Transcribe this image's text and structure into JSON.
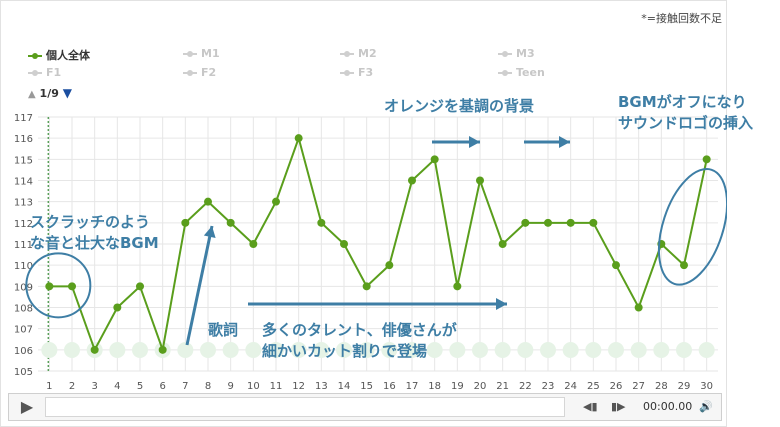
{
  "note": "*=接触回数不足",
  "legend": [
    {
      "label": "個人全体",
      "active": true
    },
    {
      "label": "M1",
      "active": false
    },
    {
      "label": "M2",
      "active": false
    },
    {
      "label": "M3",
      "active": false
    },
    {
      "label": "F1",
      "active": false
    },
    {
      "label": "F2",
      "active": false
    },
    {
      "label": "F3",
      "active": false
    },
    {
      "label": "Teen",
      "active": false
    }
  ],
  "pager": {
    "up": "▲",
    "label": "1/9",
    "down": "▼"
  },
  "annotations": {
    "scratch": "スクラッチのよう\nな音と壮大なBGM",
    "lyrics": "歌詞",
    "talent": "多くのタレント、俳優さんが\n細かいカット割りで登場",
    "orange": "オレンジを基調の背景",
    "bgm_off": "BGMがオフになり\nサウンドロゴの挿入"
  },
  "player": {
    "play": "▶",
    "prev": "◀▮",
    "next": "▮▶",
    "time": "00:00.00",
    "volume": "🔊"
  },
  "colors": {
    "series": "#5a9e1c",
    "annotation": "#3e7ea5",
    "grid": "#e6e6e6",
    "marker_row": "#e6f3e6"
  },
  "chart_data": {
    "type": "line",
    "x": [
      1,
      2,
      3,
      4,
      5,
      6,
      7,
      8,
      9,
      10,
      11,
      12,
      13,
      14,
      15,
      16,
      17,
      18,
      19,
      20,
      21,
      22,
      23,
      24,
      25,
      26,
      27,
      28,
      29,
      30
    ],
    "series": [
      {
        "name": "個人全体",
        "values": [
          109,
          109,
          106,
          108,
          109,
          106,
          112,
          113,
          112,
          111,
          113,
          116,
          112,
          111,
          109,
          110,
          114,
          115,
          109,
          114,
          111,
          112,
          112,
          112,
          112,
          110,
          108,
          111,
          110,
          115
        ]
      }
    ],
    "ylim": [
      105,
      117
    ],
    "yticks": [
      105,
      106,
      107,
      108,
      109,
      110,
      111,
      112,
      113,
      114,
      115,
      116,
      117
    ],
    "grid": true,
    "legend_position": "top-left"
  }
}
